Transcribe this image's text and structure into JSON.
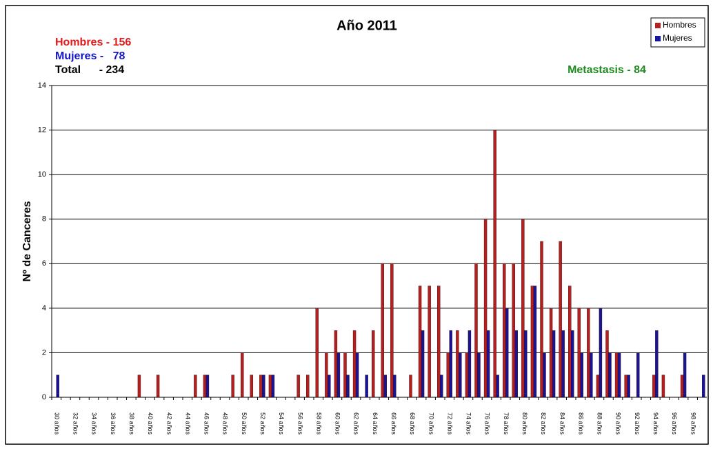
{
  "chart_data": {
    "type": "bar",
    "title": "Año 2011",
    "y_label": "Nº de Canceres",
    "annotations": [
      {
        "text": "Hombres - 156",
        "color": "#e31a1c"
      },
      {
        "text": "Mujeres -   78",
        "color": "#1515c8"
      },
      {
        "text": "Total      - 234",
        "color": "#000000"
      },
      {
        "text": "Metastasis - 84",
        "color": "#1f8a1f"
      }
    ],
    "categories": [
      "30 años",
      null,
      "32 años",
      null,
      "34 años",
      null,
      "36 años",
      null,
      "38 años",
      null,
      "40 años",
      null,
      "42 años",
      null,
      "44 años",
      null,
      "46 años",
      null,
      "48 años",
      null,
      "50 años",
      null,
      "52 años",
      null,
      "54 años",
      null,
      "56 años",
      null,
      "58 años",
      null,
      "60 años",
      null,
      "62 años",
      null,
      "64 años",
      null,
      "66 años",
      null,
      "68 años",
      null,
      "70 años",
      null,
      "72 años",
      null,
      "74 años",
      null,
      "76 años",
      null,
      "78 años",
      null,
      "80 años",
      null,
      "82 años",
      null,
      "84 años",
      null,
      "86 años",
      null,
      "88 años",
      null,
      "90 años",
      null,
      "92 años",
      null,
      "94 años",
      null,
      "96 años",
      null,
      "98 años",
      null
    ],
    "series": [
      {
        "name": "Hombres",
        "color": "#b3201f",
        "values": [
          0,
          0,
          0,
          0,
          0,
          0,
          0,
          0,
          0,
          1,
          0,
          1,
          0,
          0,
          0,
          1,
          1,
          0,
          0,
          1,
          2,
          1,
          1,
          1,
          0,
          0,
          1,
          1,
          4,
          2,
          3,
          2,
          3,
          0,
          3,
          6,
          6,
          0,
          1,
          5,
          5,
          5,
          2,
          3,
          2,
          6,
          8,
          12,
          6,
          6,
          8,
          5,
          7,
          4,
          7,
          5,
          4,
          4,
          1,
          3,
          2,
          1,
          0,
          0,
          1,
          1,
          0,
          1,
          0,
          0
        ]
      },
      {
        "name": "Mujeres",
        "color": "#15159a",
        "values": [
          1,
          0,
          0,
          0,
          0,
          0,
          0,
          0,
          0,
          0,
          0,
          0,
          0,
          0,
          0,
          0,
          1,
          0,
          0,
          0,
          0,
          0,
          1,
          1,
          0,
          0,
          0,
          0,
          0,
          1,
          2,
          1,
          2,
          1,
          0,
          1,
          1,
          0,
          0,
          3,
          0,
          1,
          3,
          2,
          3,
          2,
          3,
          1,
          4,
          3,
          3,
          5,
          2,
          3,
          3,
          3,
          2,
          2,
          4,
          2,
          2,
          1,
          2,
          0,
          3,
          0,
          0,
          2,
          0,
          1
        ]
      }
    ],
    "ylim": [
      0,
      14
    ],
    "yticks": [
      0,
      2,
      4,
      6,
      8,
      10,
      12,
      14
    ],
    "grid": true,
    "legend": "top-right"
  }
}
